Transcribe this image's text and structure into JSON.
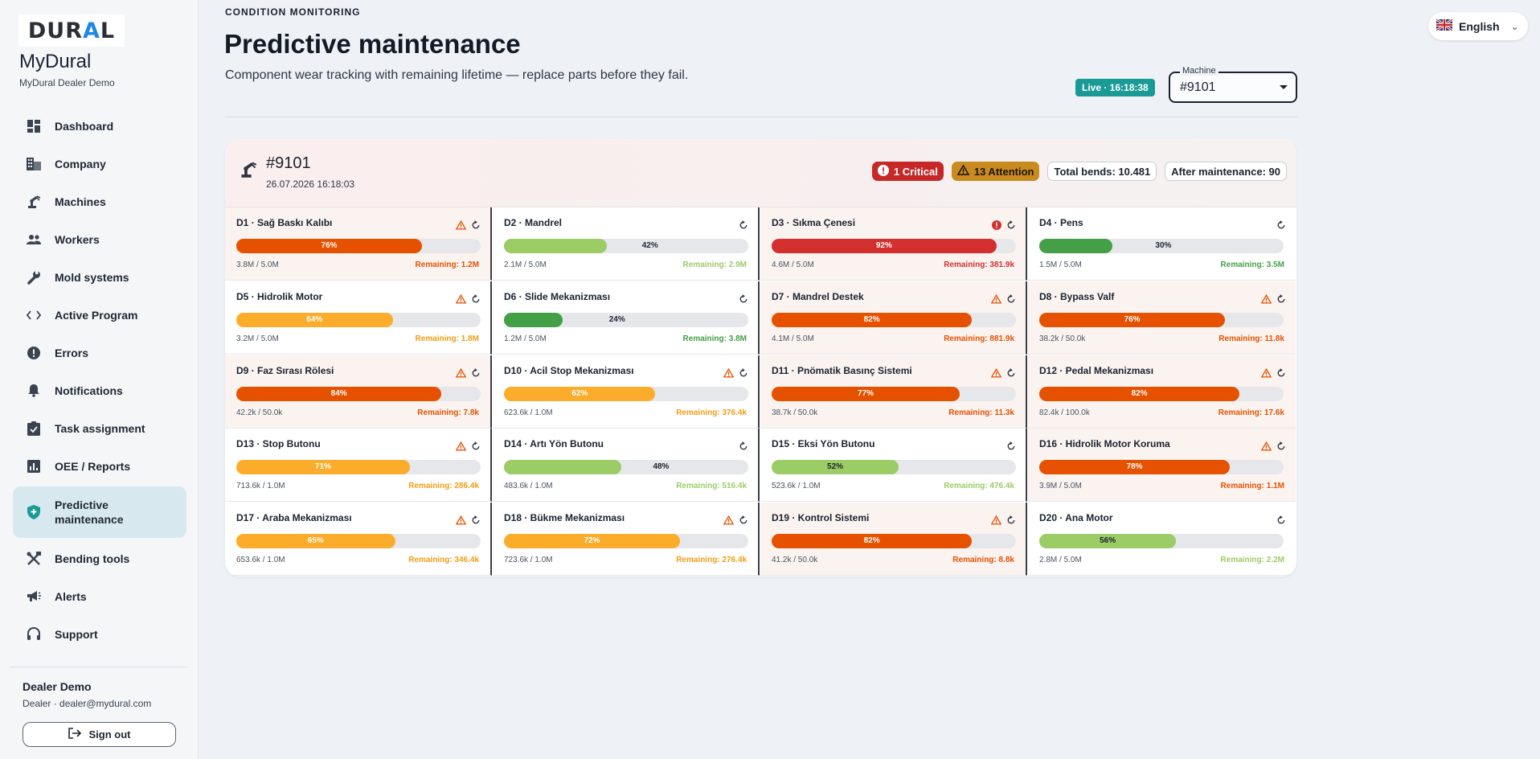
{
  "brand": {
    "logo": "DURAL",
    "app_name": "MyDural",
    "app_sub": "MyDural Dealer Demo"
  },
  "sidebar": {
    "items": [
      {
        "label": "Dashboard",
        "icon": "dashboard-icon"
      },
      {
        "label": "Company",
        "icon": "building-icon"
      },
      {
        "label": "Machines",
        "icon": "robot-arm-icon"
      },
      {
        "label": "Workers",
        "icon": "people-icon"
      },
      {
        "label": "Mold systems",
        "icon": "wrench-icon"
      },
      {
        "label": "Active Program",
        "icon": "code-icon"
      },
      {
        "label": "Errors",
        "icon": "error-icon"
      },
      {
        "label": "Notifications",
        "icon": "bell-icon"
      },
      {
        "label": "Task assignment",
        "icon": "task-icon"
      },
      {
        "label": "OEE / Reports",
        "icon": "chart-icon"
      },
      {
        "label": "Predictive maintenance",
        "icon": "shield-icon",
        "active": true
      },
      {
        "label": "Bending tools",
        "icon": "tools-icon"
      },
      {
        "label": "Alerts",
        "icon": "megaphone-icon"
      },
      {
        "label": "Support",
        "icon": "headset-icon"
      }
    ],
    "user_name": "Dealer Demo",
    "user_mail": "Dealer · dealer@mydural.com",
    "signout": "Sign out"
  },
  "header": {
    "kicker": "CONDITION MONITORING",
    "title": "Predictive maintenance",
    "description": "Component wear tracking with remaining lifetime — replace parts before they fail.",
    "live": "Live · 16:18:38",
    "machine_label": "Machine",
    "machine_value": "#9101",
    "language": "English"
  },
  "card": {
    "machine": "#9101",
    "date": "26.07.2026 16:18:03",
    "critical": "1 Critical",
    "attention": "13 Attention",
    "total_bends": "Total bends: 10.481",
    "after_maint": "After maintenance: 90"
  },
  "colors": {
    "red": "#d32f2f",
    "deep_orange": "#e65100",
    "orange": "#fbac2a",
    "light_green": "#9ccc65",
    "green": "#43a047",
    "teal": "#1a9a96"
  },
  "components": [
    {
      "title": "D1 · Sağ Baskı Kalıbı",
      "pct": 76,
      "pct_label": "76%",
      "usage": "3.8M / 5.0M",
      "remaining": "Remaining: 1.2M",
      "level": "deep_orange",
      "warn": true,
      "critical": false
    },
    {
      "title": "D2 · Mandrel",
      "pct": 42,
      "pct_label": "42%",
      "usage": "2.1M / 5.0M",
      "remaining": "Remaining: 2.9M",
      "level": "light_green",
      "warn": false,
      "critical": false
    },
    {
      "title": "D3 · Sıkma Çenesi",
      "pct": 92,
      "pct_label": "92%",
      "usage": "4.6M / 5.0M",
      "remaining": "Remaining: 381.9k",
      "level": "red",
      "warn": false,
      "critical": true
    },
    {
      "title": "D4 · Pens",
      "pct": 30,
      "pct_label": "30%",
      "usage": "1.5M / 5.0M",
      "remaining": "Remaining: 3.5M",
      "level": "green",
      "warn": false,
      "critical": false
    },
    {
      "title": "D5 · Hidrolik Motor",
      "pct": 64,
      "pct_label": "64%",
      "usage": "3.2M / 5.0M",
      "remaining": "Remaining: 1.8M",
      "level": "orange",
      "warn": true,
      "critical": false
    },
    {
      "title": "D6 · Slide Mekanizması",
      "pct": 24,
      "pct_label": "24%",
      "usage": "1.2M / 5.0M",
      "remaining": "Remaining: 3.8M",
      "level": "green",
      "warn": false,
      "critical": false
    },
    {
      "title": "D7 · Mandrel Destek",
      "pct": 82,
      "pct_label": "82%",
      "usage": "4.1M / 5.0M",
      "remaining": "Remaining: 881.9k",
      "level": "deep_orange",
      "warn": true,
      "critical": false
    },
    {
      "title": "D8 · Bypass Valf",
      "pct": 76,
      "pct_label": "76%",
      "usage": "38.2k / 50.0k",
      "remaining": "Remaining: 11.8k",
      "level": "deep_orange",
      "warn": true,
      "critical": false
    },
    {
      "title": "D9 · Faz Sırası Rölesi",
      "pct": 84,
      "pct_label": "84%",
      "usage": "42.2k / 50.0k",
      "remaining": "Remaining: 7.8k",
      "level": "deep_orange",
      "warn": true,
      "critical": false
    },
    {
      "title": "D10 · Acil Stop Mekanizması",
      "pct": 62,
      "pct_label": "62%",
      "usage": "623.6k / 1.0M",
      "remaining": "Remaining: 376.4k",
      "level": "orange",
      "warn": true,
      "critical": false
    },
    {
      "title": "D11 · Pnömatik Basınç Sistemi",
      "pct": 77,
      "pct_label": "77%",
      "usage": "38.7k / 50.0k",
      "remaining": "Remaining: 11.3k",
      "level": "deep_orange",
      "warn": true,
      "critical": false
    },
    {
      "title": "D12 · Pedal Mekanizması",
      "pct": 82,
      "pct_label": "82%",
      "usage": "82.4k / 100.0k",
      "remaining": "Remaining: 17.6k",
      "level": "deep_orange",
      "warn": true,
      "critical": false
    },
    {
      "title": "D13 · Stop Butonu",
      "pct": 71,
      "pct_label": "71%",
      "usage": "713.6k / 1.0M",
      "remaining": "Remaining: 286.4k",
      "level": "orange",
      "warn": true,
      "critical": false
    },
    {
      "title": "D14 · Artı Yön Butonu",
      "pct": 48,
      "pct_label": "48%",
      "usage": "483.6k / 1.0M",
      "remaining": "Remaining: 516.4k",
      "level": "light_green",
      "warn": false,
      "critical": false
    },
    {
      "title": "D15 · Eksi Yön Butonu",
      "pct": 52,
      "pct_label": "52%",
      "usage": "523.6k / 1.0M",
      "remaining": "Remaining: 476.4k",
      "level": "light_green",
      "warn": false,
      "critical": false
    },
    {
      "title": "D16 · Hidrolik Motor Koruma",
      "pct": 78,
      "pct_label": "78%",
      "usage": "3.9M / 5.0M",
      "remaining": "Remaining: 1.1M",
      "level": "deep_orange",
      "warn": true,
      "critical": false
    },
    {
      "title": "D17 · Araba Mekanizması",
      "pct": 65,
      "pct_label": "65%",
      "usage": "653.6k / 1.0M",
      "remaining": "Remaining: 346.4k",
      "level": "orange",
      "warn": true,
      "critical": false
    },
    {
      "title": "D18 · Bükme Mekanizması",
      "pct": 72,
      "pct_label": "72%",
      "usage": "723.6k / 1.0M",
      "remaining": "Remaining: 276.4k",
      "level": "orange",
      "warn": true,
      "critical": false
    },
    {
      "title": "D19 · Kontrol Sistemi",
      "pct": 82,
      "pct_label": "82%",
      "usage": "41.2k / 50.0k",
      "remaining": "Remaining: 8.8k",
      "level": "deep_orange",
      "warn": true,
      "critical": false
    },
    {
      "title": "D20 · Ana Motor",
      "pct": 56,
      "pct_label": "56%",
      "usage": "2.8M / 5.0M",
      "remaining": "Remaining: 2.2M",
      "level": "light_green",
      "warn": false,
      "critical": false
    }
  ]
}
